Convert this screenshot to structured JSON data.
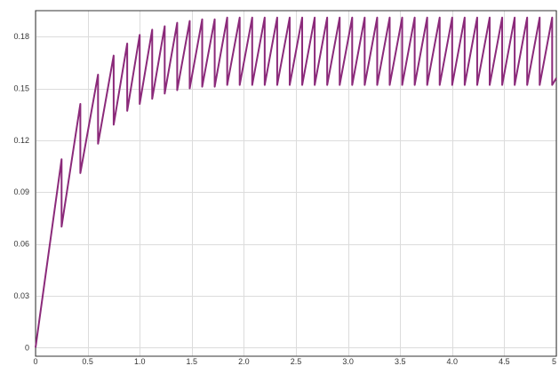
{
  "chart_data": {
    "type": "line",
    "title": "",
    "xlabel": "",
    "ylabel": "",
    "xlim": [
      0,
      5
    ],
    "ylim": [
      -0.005,
      0.195
    ],
    "grid": true,
    "legend": "none",
    "x_ticks": [
      {
        "value": 0,
        "label": "0"
      },
      {
        "value": 0.5,
        "label": "0.5"
      },
      {
        "value": 1.0,
        "label": "1.0"
      },
      {
        "value": 1.5,
        "label": "1.5"
      },
      {
        "value": 2.0,
        "label": "2.0"
      },
      {
        "value": 2.5,
        "label": "2.5"
      },
      {
        "value": 3.0,
        "label": "3.0"
      },
      {
        "value": 3.5,
        "label": "3.5"
      },
      {
        "value": 4.0,
        "label": "4.0"
      },
      {
        "value": 4.5,
        "label": "4.5"
      },
      {
        "value": 5.0,
        "label": "5"
      }
    ],
    "y_ticks": [
      {
        "value": 0,
        "label": "0"
      },
      {
        "value": 0.03,
        "label": "0.03"
      },
      {
        "value": 0.06,
        "label": "0.06"
      },
      {
        "value": 0.09,
        "label": "0.09"
      },
      {
        "value": 0.12,
        "label": "0.12"
      },
      {
        "value": 0.15,
        "label": "0.15"
      },
      {
        "value": 0.18,
        "label": "0.18"
      }
    ],
    "series": [
      {
        "color": "#8b2a7a",
        "points": [
          [
            0.0,
            0.0
          ],
          [
            0.25,
            0.109
          ],
          [
            0.25,
            0.07
          ],
          [
            0.43,
            0.141
          ],
          [
            0.43,
            0.101
          ],
          [
            0.6,
            0.158
          ],
          [
            0.6,
            0.118
          ],
          [
            0.75,
            0.169
          ],
          [
            0.75,
            0.129
          ],
          [
            0.88,
            0.176
          ],
          [
            0.88,
            0.137
          ],
          [
            1.0,
            0.181
          ],
          [
            1.0,
            0.141
          ],
          [
            1.12,
            0.184
          ],
          [
            1.12,
            0.144
          ],
          [
            1.24,
            0.186
          ],
          [
            1.24,
            0.147
          ],
          [
            1.36,
            0.188
          ],
          [
            1.36,
            0.149
          ],
          [
            1.48,
            0.189
          ],
          [
            1.48,
            0.15
          ],
          [
            1.6,
            0.19
          ],
          [
            1.6,
            0.151
          ],
          [
            1.72,
            0.19
          ],
          [
            1.72,
            0.151
          ],
          [
            1.84,
            0.191
          ],
          [
            1.84,
            0.152
          ],
          [
            1.96,
            0.191
          ],
          [
            1.96,
            0.152
          ],
          [
            2.08,
            0.191
          ],
          [
            2.08,
            0.152
          ],
          [
            2.2,
            0.191
          ],
          [
            2.2,
            0.152
          ],
          [
            2.32,
            0.191
          ],
          [
            2.32,
            0.152
          ],
          [
            2.44,
            0.191
          ],
          [
            2.44,
            0.152
          ],
          [
            2.56,
            0.191
          ],
          [
            2.56,
            0.152
          ],
          [
            2.68,
            0.191
          ],
          [
            2.68,
            0.152
          ],
          [
            2.8,
            0.191
          ],
          [
            2.8,
            0.152
          ],
          [
            2.92,
            0.191
          ],
          [
            2.92,
            0.152
          ],
          [
            3.04,
            0.191
          ],
          [
            3.04,
            0.152
          ],
          [
            3.16,
            0.191
          ],
          [
            3.16,
            0.152
          ],
          [
            3.28,
            0.191
          ],
          [
            3.28,
            0.152
          ],
          [
            3.4,
            0.191
          ],
          [
            3.4,
            0.152
          ],
          [
            3.52,
            0.191
          ],
          [
            3.52,
            0.152
          ],
          [
            3.64,
            0.191
          ],
          [
            3.64,
            0.152
          ],
          [
            3.76,
            0.191
          ],
          [
            3.76,
            0.152
          ],
          [
            3.88,
            0.191
          ],
          [
            3.88,
            0.152
          ],
          [
            4.0,
            0.191
          ],
          [
            4.0,
            0.152
          ],
          [
            4.12,
            0.191
          ],
          [
            4.12,
            0.152
          ],
          [
            4.24,
            0.191
          ],
          [
            4.24,
            0.152
          ],
          [
            4.36,
            0.191
          ],
          [
            4.36,
            0.152
          ],
          [
            4.48,
            0.191
          ],
          [
            4.48,
            0.152
          ],
          [
            4.6,
            0.191
          ],
          [
            4.6,
            0.152
          ],
          [
            4.72,
            0.191
          ],
          [
            4.72,
            0.152
          ],
          [
            4.84,
            0.191
          ],
          [
            4.84,
            0.152
          ],
          [
            4.96,
            0.191
          ],
          [
            4.96,
            0.152
          ],
          [
            5.0,
            0.156
          ]
        ]
      }
    ]
  }
}
